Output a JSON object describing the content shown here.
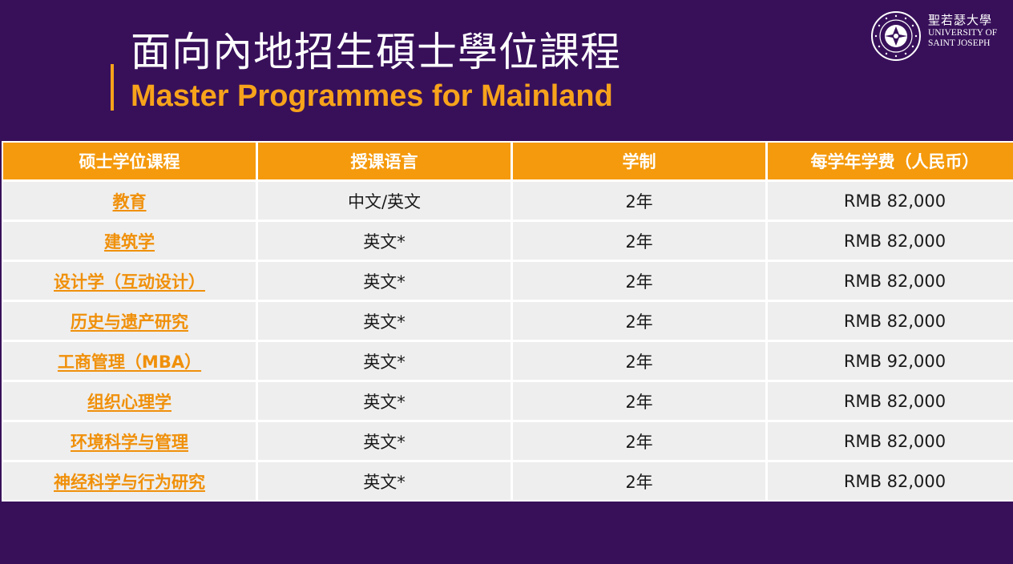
{
  "header": {
    "title_zh": "面向內地招生碩士學位課程",
    "title_en": "Master Programmes for Mainland"
  },
  "logo": {
    "name_zh": "聖若瑟大學",
    "name_en_line1": "UNIVERSITY OF",
    "name_en_line2": "SAINT JOSEPH",
    "seal_text": "UNIVERSITAS SANCTI IOSEPH"
  },
  "colors": {
    "background": "#38105a",
    "accent": "#f7a31b",
    "header_cell": "#f59a0c",
    "body_cell": "#eeeeee",
    "link": "#f0900a"
  },
  "table": {
    "headers": [
      "硕士学位课程",
      "授课语言",
      "学制",
      "每学年学费（人民币）"
    ],
    "rows": [
      {
        "programme": "教育",
        "language": "中文/英文",
        "duration": "2年",
        "fee": "RMB 82,000"
      },
      {
        "programme": "建筑学",
        "language": "英文*",
        "duration": "2年",
        "fee": "RMB 82,000"
      },
      {
        "programme": "设计学（互动设计）",
        "language": "英文*",
        "duration": "2年",
        "fee": "RMB 82,000"
      },
      {
        "programme": "历史与遗产研究",
        "language": "英文*",
        "duration": "2年",
        "fee": "RMB 82,000"
      },
      {
        "programme": "工商管理（MBA）",
        "language": "英文*",
        "duration": "2年",
        "fee": "RMB 92,000"
      },
      {
        "programme": "组织心理学",
        "language": "英文*",
        "duration": "2年",
        "fee": "RMB 82,000"
      },
      {
        "programme": "环境科学与管理",
        "language": "英文*",
        "duration": "2年",
        "fee": "RMB 82,000"
      },
      {
        "programme": "神经科学与行为研究",
        "language": "英文*",
        "duration": "2年",
        "fee": "RMB 82,000"
      }
    ]
  }
}
